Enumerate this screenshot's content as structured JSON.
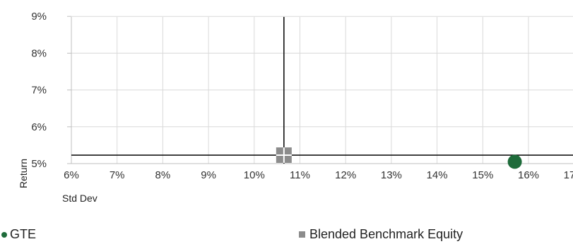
{
  "chart_data": {
    "type": "scatter",
    "xlabel": "Std Dev",
    "ylabel": "Return",
    "xlim": [
      6,
      17
    ],
    "ylim": [
      5,
      9
    ],
    "x_ticks": [
      "6%",
      "7%",
      "8%",
      "9%",
      "10%",
      "11%",
      "12%",
      "13%",
      "14%",
      "15%",
      "16%",
      "17%"
    ],
    "y_ticks": [
      "5%",
      "6%",
      "7%",
      "8%",
      "9%"
    ],
    "grid": true,
    "legend_position": "bottom",
    "crosshair": {
      "x": 10.65,
      "y": 5.23
    },
    "series": [
      {
        "name": "GTE",
        "color": "#1e6b3a",
        "marker": "circle",
        "points": [
          {
            "x": 15.7,
            "y": 5.05
          }
        ]
      },
      {
        "name": "Blended Benchmark Equity",
        "color": "#8c8c8c",
        "marker": "square",
        "points": [
          {
            "x": 10.65,
            "y": 5.23
          }
        ]
      }
    ]
  }
}
